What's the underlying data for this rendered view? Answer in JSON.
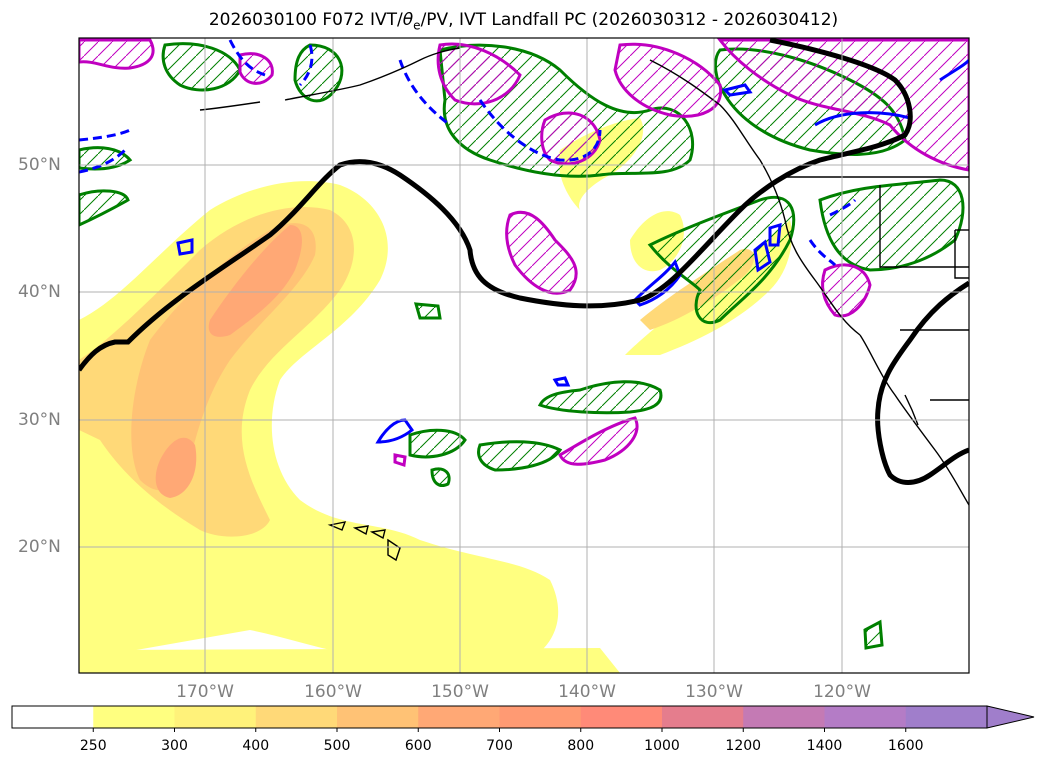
{
  "title": {
    "prefix": "2026030100 F072 IVT/",
    "theta": "θ",
    "theta_sub": "e",
    "suffix": "/PV, IVT Landfall PC (2026030312 - 2026030412)"
  },
  "map": {
    "lat_labels": [
      "50°N",
      "40°N",
      "30°N",
      "20°N"
    ],
    "lon_labels": [
      "170°W",
      "160°W",
      "150°W",
      "140°W",
      "130°W",
      "120°W"
    ],
    "grid": true,
    "region": "North Pacific / US West Coast",
    "contours": {
      "ivt_shading_color": "#ffff80",
      "green_contour_color": "#008000",
      "magenta_contour_color": "#c000c0",
      "blue_contour_color": "#0000ff",
      "black_contour_color": "#000000"
    }
  },
  "colorbar": {
    "tick_labels": [
      "250",
      "300",
      "400",
      "500",
      "600",
      "700",
      "800",
      "1000",
      "1200",
      "1400",
      "1600"
    ],
    "colors": [
      "#ffffff",
      "#ffff80",
      "#fff27a",
      "#ffd978",
      "#ffc275",
      "#ffa875",
      "#ff9a73",
      "#ff8a78",
      "#e57d8d",
      "#c47ab4",
      "#b47cc6",
      "#a07ecb"
    ],
    "extend": "max"
  }
}
